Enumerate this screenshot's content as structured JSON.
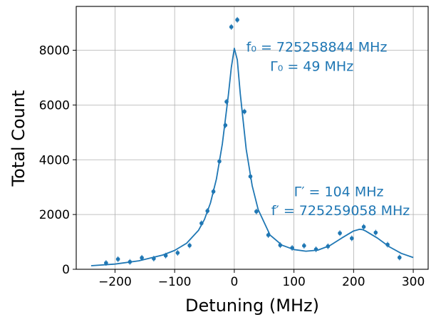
{
  "chart_data": {
    "type": "scatter",
    "title": "",
    "xlabel": "Detuning (MHz)",
    "ylabel": "Total Count",
    "xlim": [
      -265,
      325
    ],
    "ylim": [
      0,
      9600
    ],
    "xticks": [
      -200,
      -100,
      0,
      100,
      200,
      300
    ],
    "xtick_labels": [
      "−200",
      "−100",
      "0",
      "100",
      "200",
      "300"
    ],
    "yticks": [
      0,
      2000,
      4000,
      6000,
      8000
    ],
    "ytick_labels": [
      "0",
      "2000",
      "4000",
      "6000",
      "8000"
    ],
    "grid": true,
    "legend": "none",
    "series_color": "#1f77b4",
    "series": [
      {
        "kind": "points",
        "points": [
          [
            -215,
            230
          ],
          [
            -195,
            370
          ],
          [
            -175,
            270
          ],
          [
            -155,
            420
          ],
          [
            -135,
            390
          ],
          [
            -115,
            500
          ],
          [
            -95,
            600
          ],
          [
            -75,
            870
          ],
          [
            -55,
            1680
          ],
          [
            -45,
            2130
          ],
          [
            -35,
            2840
          ],
          [
            -25,
            3940
          ],
          [
            -15,
            5260
          ],
          [
            -13,
            6120
          ],
          [
            -5,
            8850
          ],
          [
            5,
            9110
          ],
          [
            17,
            5760
          ],
          [
            27,
            3390
          ],
          [
            37,
            2110
          ],
          [
            57,
            1250
          ],
          [
            77,
            880
          ],
          [
            97,
            780
          ],
          [
            117,
            860
          ],
          [
            137,
            730
          ],
          [
            157,
            840
          ],
          [
            177,
            1320
          ],
          [
            197,
            1130
          ],
          [
            217,
            1550
          ],
          [
            237,
            1340
          ],
          [
            257,
            900
          ],
          [
            277,
            430
          ]
        ]
      },
      {
        "kind": "fit",
        "x": [
          -240,
          -200,
          -160,
          -120,
          -100,
          -80,
          -60,
          -50,
          -40,
          -30,
          -20,
          -10,
          -5,
          0,
          5,
          10,
          20,
          30,
          40,
          60,
          80,
          100,
          120,
          140,
          160,
          180,
          200,
          210,
          215,
          220,
          240,
          260,
          280,
          300
        ],
        "y": [
          130,
          190,
          310,
          520,
          690,
          950,
          1420,
          1820,
          2420,
          3300,
          4580,
          6350,
          7370,
          8070,
          7650,
          6400,
          4380,
          3050,
          2180,
          1250,
          880,
          720,
          660,
          700,
          860,
          1140,
          1400,
          1460,
          1450,
          1400,
          1140,
          820,
          580,
          430
        ]
      }
    ],
    "annotations": [
      {
        "text": "f₀ = 725258844 MHz",
        "x": 20,
        "y": 7950
      },
      {
        "text": "Γ₀ = 49 MHz",
        "x": 60,
        "y": 7250
      },
      {
        "text": "Γ′ = 104 MHz",
        "x": 100,
        "y": 2670
      },
      {
        "text": "f′ = 725259058 MHz",
        "x": 62,
        "y": 1980
      }
    ]
  }
}
